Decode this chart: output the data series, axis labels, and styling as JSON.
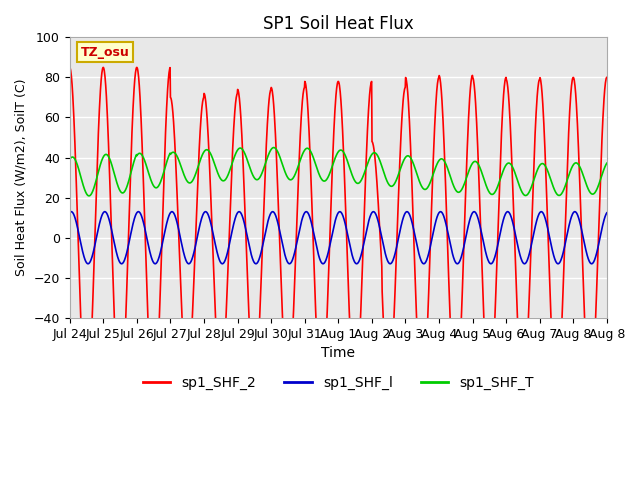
{
  "title": "SP1 Soil Heat Flux",
  "xlabel": "Time",
  "ylabel": "Soil Heat Flux (W/m2), SoilT (C)",
  "ylim": [
    -40,
    100
  ],
  "background_color": "#ffffff",
  "plot_bg_color": "#e8e8e8",
  "grid_color": "#ffffff",
  "tz_label": "TZ_osu",
  "tz_box_facecolor": "#ffffcc",
  "tz_box_edgecolor": "#ccaa00",
  "tz_text_color": "#cc0000",
  "legend_labels": [
    "sp1_SHF_2",
    "sp1_SHF_l",
    "sp1_SHF_T"
  ],
  "line_colors": [
    "#ff0000",
    "#0000cc",
    "#00cc00"
  ],
  "x_tick_labels": [
    "Jul 24",
    "Jul 25",
    "Jul 26",
    "Jul 27",
    "Jul 28",
    "Jul 29",
    "Jul 30",
    "Jul 31",
    "Aug 1",
    "Aug 2",
    "Aug 3",
    "Aug 4",
    "Aug 5",
    "Aug 6",
    "Aug 7",
    "Aug 8",
    "Aug 8"
  ],
  "yticks": [
    -40,
    -20,
    0,
    20,
    40,
    60,
    80,
    100
  ]
}
